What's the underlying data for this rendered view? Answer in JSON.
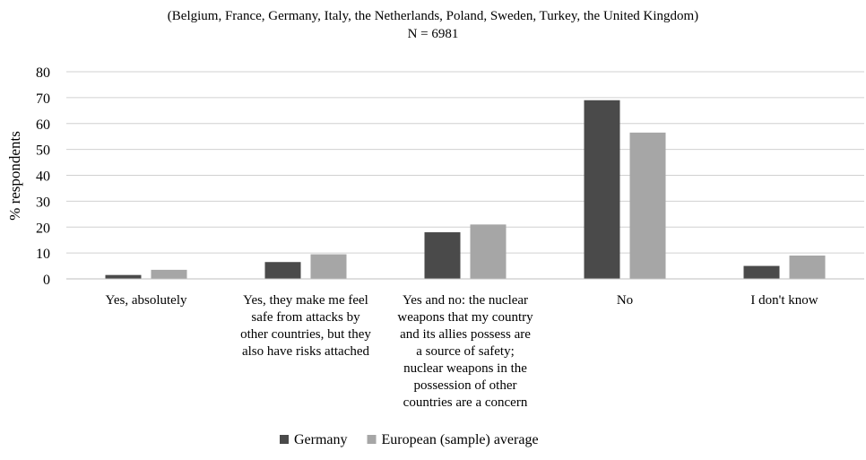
{
  "chart_data": {
    "type": "bar",
    "title": "",
    "subtitle_lines": [
      "(Belgium, France, Germany, Italy, the Netherlands, Poland, Sweden, Turkey, the United Kingdom)",
      "N = 6981"
    ],
    "xlabel": "",
    "ylabel": "% respondents",
    "ylim": [
      0,
      80
    ],
    "yticks": [
      0,
      10,
      20,
      30,
      40,
      50,
      60,
      70,
      80
    ],
    "grid": true,
    "legend_position": "bottom",
    "categories": [
      [
        "Yes, absolutely"
      ],
      [
        "Yes, they make me feel",
        "safe from attacks by",
        "other countries, but they",
        "also have risks attached"
      ],
      [
        "Yes and no: the nuclear",
        "weapons that my country",
        "and its allies possess are",
        "a source of safety;",
        "nuclear weapons in the",
        "possession of other",
        "countries are a concern"
      ],
      [
        "No"
      ],
      [
        "I don't know"
      ]
    ],
    "series": [
      {
        "name": "Germany",
        "color": "#4a4a4a",
        "values": [
          1.5,
          6.5,
          18,
          69,
          5
        ]
      },
      {
        "name": "European (sample) average",
        "color": "#a6a6a6",
        "values": [
          3.5,
          9.5,
          21,
          56.5,
          9
        ]
      }
    ]
  }
}
